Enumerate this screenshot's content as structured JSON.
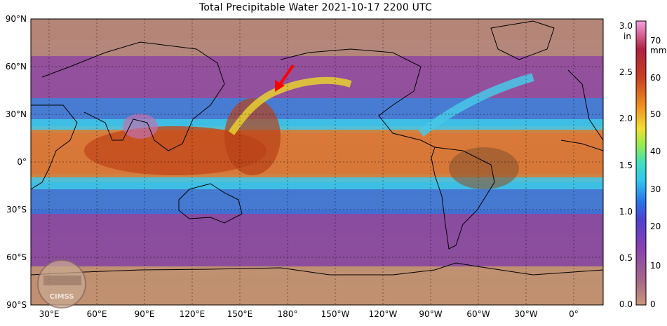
{
  "title": "Total Precipitable Water  2021-10-17 2200 UTC",
  "map": {
    "lat_labels": [
      "90°N",
      "60°N",
      "30°N",
      "0°",
      "30°S",
      "60°S",
      "90°S"
    ],
    "lon_labels": [
      "30°E",
      "60°E",
      "90°E",
      "120°E",
      "150°E",
      "180°",
      "150°W",
      "120°W",
      "90°W",
      "60°W",
      "30°W",
      "0°"
    ],
    "lat_range": [
      -90,
      90
    ],
    "gridlines": "dashed",
    "logo_text": "CIMSS",
    "annotation": "red arrow"
  },
  "colorbar": {
    "inch_label": "in",
    "mm_label": "mm",
    "inch_ticks": [
      "3.0",
      "2.5",
      "2.0",
      "1.5",
      "1.0",
      "0.5",
      "0.0"
    ],
    "mm_ticks": [
      "70",
      "60",
      "50",
      "40",
      "30",
      "20",
      "10",
      "0"
    ],
    "colors": [
      "#f5a0e0",
      "#c83232",
      "#e07820",
      "#e8d020",
      "#60e060",
      "#30c0f0",
      "#2060e0",
      "#8030c0",
      "#a06090",
      "#c09070"
    ]
  }
}
